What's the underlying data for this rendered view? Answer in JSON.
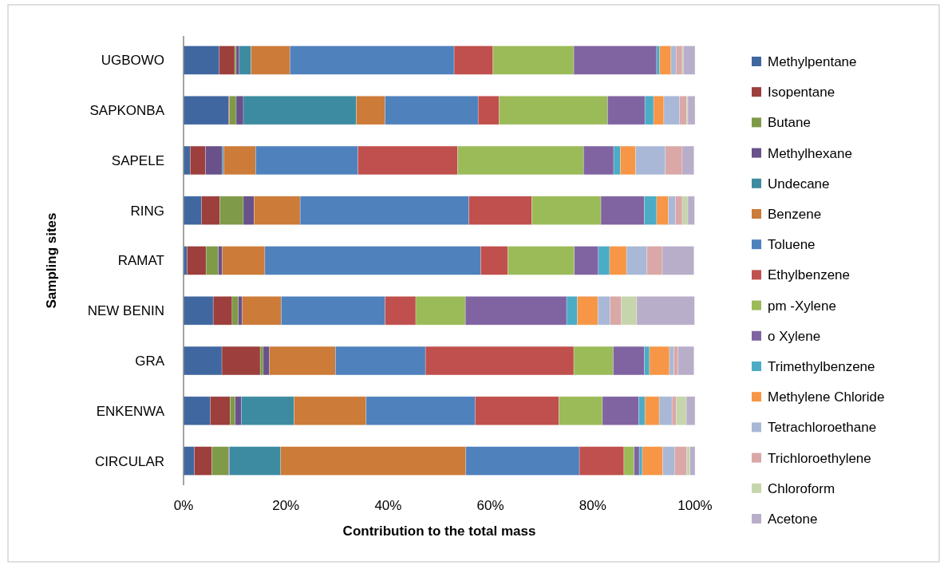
{
  "chart_data": {
    "type": "bar",
    "orientation": "horizontal",
    "stacked": true,
    "xlabel": "Contribution to the total mass",
    "ylabel": "Sampling sites",
    "categories": [
      "UGBOWO",
      "SAPKONBA",
      "SAPELE",
      "RING",
      "RAMAT",
      "NEW BENIN",
      "GRA",
      "ENKENWA",
      "CIRCULAR"
    ],
    "xlim": [
      0,
      100
    ],
    "xticks": [
      {
        "value": 0,
        "label": "0%"
      },
      {
        "value": 20,
        "label": "20%"
      },
      {
        "value": 40,
        "label": "40%"
      },
      {
        "value": 60,
        "label": "60%"
      },
      {
        "value": 80,
        "label": "80%"
      },
      {
        "value": 100,
        "label": "100%"
      }
    ],
    "legend": "right",
    "grid": false,
    "series": [
      {
        "name": "Methylpentane",
        "color": "#4067a0",
        "values": [
          7.0,
          8.8,
          1.3,
          3.5,
          0.7,
          5.8,
          7.5,
          5.2,
          2.1
        ]
      },
      {
        "name": "Isopentane",
        "color": "#9c3f3d",
        "values": [
          3.0,
          0.2,
          3.0,
          3.6,
          3.7,
          3.7,
          7.5,
          3.9,
          3.4
        ]
      },
      {
        "name": "Butane",
        "color": "#7f9a48",
        "values": [
          0.3,
          1.3,
          null,
          4.6,
          2.4,
          1.2,
          0.6,
          1.0,
          3.3
        ]
      },
      {
        "name": "Methylhexane",
        "color": "#69518a",
        "values": [
          0.6,
          1.4,
          3.3,
          2.1,
          0.8,
          0.8,
          1.2,
          1.2,
          0.2
        ]
      },
      {
        "name": "Undecane",
        "color": "#3d8ba1",
        "values": [
          2.3,
          22.1,
          0.3,
          null,
          null,
          null,
          null,
          10.3,
          10.0
        ]
      },
      {
        "name": "Benzene",
        "color": "#cc7b38",
        "values": [
          7.6,
          5.6,
          6.2,
          9.0,
          8.3,
          7.6,
          12.9,
          14.1,
          36.2
        ]
      },
      {
        "name": "Toluene",
        "color": "#4f81bd",
        "values": [
          32.1,
          18.2,
          20.0,
          33.0,
          42.2,
          20.3,
          17.6,
          21.3,
          22.2
        ]
      },
      {
        "name": "Ethylbenzene",
        "color": "#c0504d",
        "values": [
          7.6,
          4.1,
          19.5,
          12.3,
          5.3,
          6.0,
          29.0,
          16.4,
          8.7
        ]
      },
      {
        "name": "pm -Xylene",
        "color": "#9bbb59",
        "values": [
          15.8,
          21.2,
          24.6,
          13.5,
          13.0,
          9.7,
          7.7,
          8.5,
          2.0
        ]
      },
      {
        "name": "o Xylene",
        "color": "#8064a2",
        "values": [
          16.2,
          7.3,
          5.9,
          8.5,
          4.7,
          19.8,
          6.1,
          7.1,
          1.0
        ]
      },
      {
        "name": "Trimethylbenzene",
        "color": "#4bacc6",
        "values": [
          0.6,
          1.7,
          1.3,
          2.4,
          2.2,
          2.1,
          1.0,
          1.2,
          0.6
        ]
      },
      {
        "name": "Methylene Chloride",
        "color": "#f79646",
        "values": [
          2.2,
          2.0,
          3.0,
          2.3,
          3.3,
          4.0,
          3.9,
          2.8,
          4.0
        ]
      },
      {
        "name": "Tetrachloroethane",
        "color": "#a9b8d6",
        "values": [
          1.0,
          3.1,
          5.8,
          1.4,
          4.0,
          2.4,
          0.9,
          2.5,
          2.3
        ]
      },
      {
        "name": "Trichloroethylene",
        "color": "#d9a8a7",
        "values": [
          1.2,
          1.4,
          3.3,
          1.3,
          3.0,
          2.2,
          0.8,
          0.8,
          2.4
        ]
      },
      {
        "name": "Chloroform",
        "color": "#c6d5ac",
        "values": [
          0.2,
          0.2,
          null,
          1.1,
          null,
          3.0,
          null,
          2.0,
          0.6
        ]
      },
      {
        "name": "Acetone",
        "color": "#b9aec9",
        "values": [
          2.3,
          1.4,
          2.3,
          1.3,
          6.2,
          11.3,
          3.1,
          1.7,
          1.0
        ]
      }
    ]
  }
}
